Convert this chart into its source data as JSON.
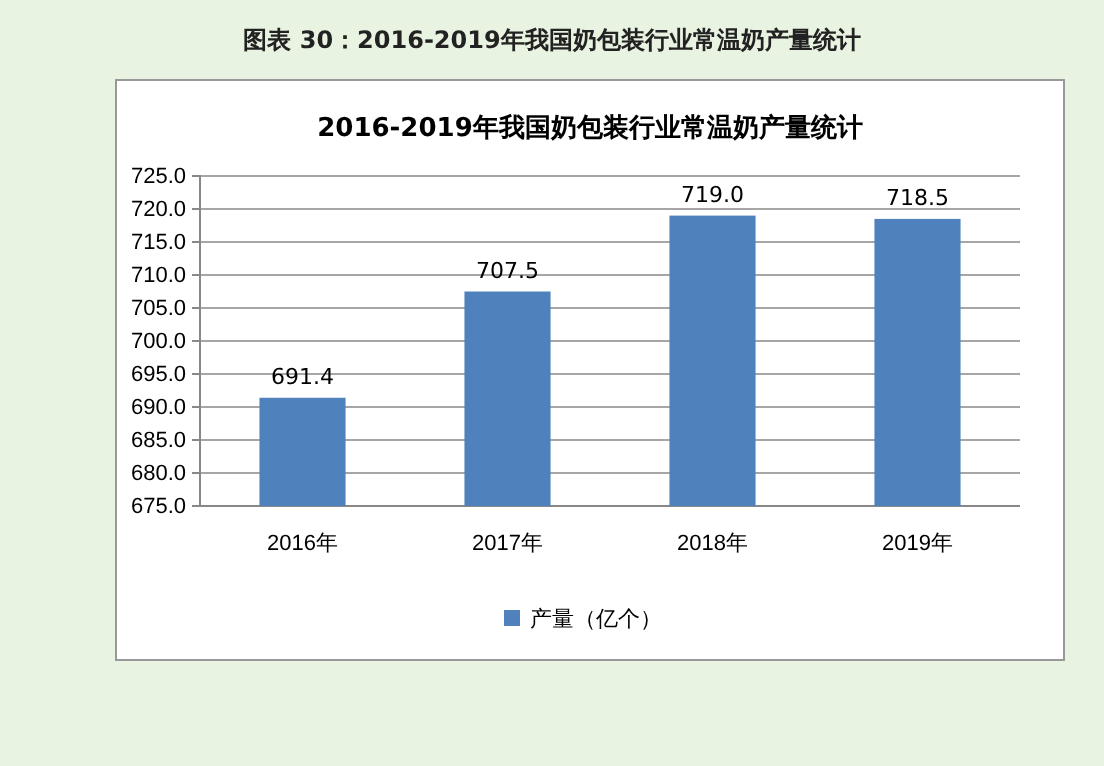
{
  "chart_data": {
    "type": "bar",
    "title": "2016-2019年我国奶包装行业常温奶产量统计",
    "annotations": [
      "图表  30：2016-2019年我国奶包装行业常温奶产量统计"
    ],
    "categories": [
      "2016年",
      "2017年",
      "2018年",
      "2019年"
    ],
    "series": [
      {
        "name": "产量（亿个）",
        "color": "#4f81bd",
        "values": [
          691.4,
          707.5,
          719.0,
          718.5
        ]
      }
    ],
    "value_labels": [
      "691.4",
      "707.5",
      "719.0",
      "718.5"
    ],
    "ylim": [
      675,
      725
    ],
    "yticks": [
      {
        "value": 675,
        "label": "675.0"
      },
      {
        "value": 680,
        "label": "680.0"
      },
      {
        "value": 685,
        "label": "685.0"
      },
      {
        "value": 690,
        "label": "690.0"
      },
      {
        "value": 695,
        "label": "695.0"
      },
      {
        "value": 700,
        "label": "700.0"
      },
      {
        "value": 705,
        "label": "705.0"
      },
      {
        "value": 710,
        "label": "710.0"
      },
      {
        "value": 715,
        "label": "715.0"
      },
      {
        "value": 720,
        "label": "720.0"
      },
      {
        "value": 725,
        "label": "725.0"
      }
    ],
    "grid": "y",
    "legend": "bottom"
  }
}
